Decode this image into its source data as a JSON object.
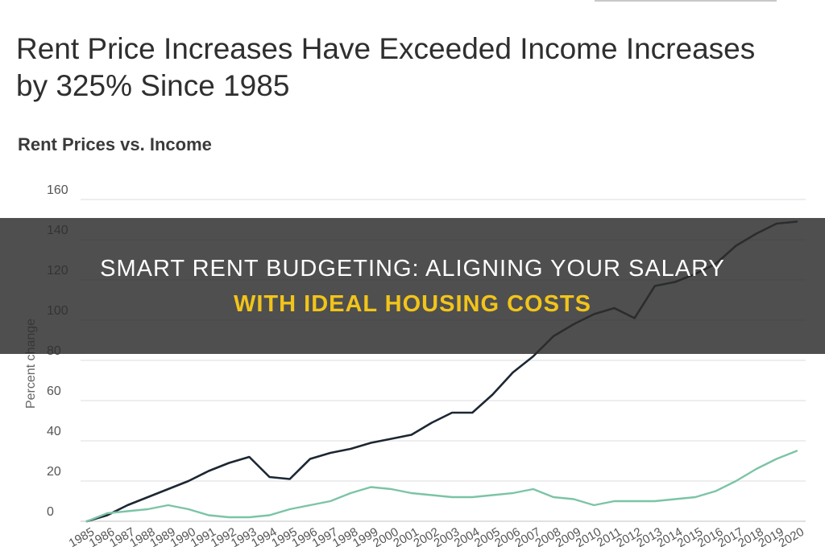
{
  "page": {
    "title": "Rent Price Increases Have Exceeded Income Increases by 325% Since 1985"
  },
  "banner": {
    "line1": "SMART RENT BUDGETING: ALIGNING YOUR SALARY",
    "line2": "WITH IDEAL HOUSING COSTS",
    "text_color": "#ffffff",
    "highlight_color": "#f2c41a"
  },
  "chart_data": {
    "type": "line",
    "title": "Rent Prices vs. Income",
    "xlabel": "",
    "ylabel": "Percent change",
    "ylim": [
      0,
      160
    ],
    "yticks": [
      0,
      20,
      40,
      60,
      80,
      100,
      120,
      140,
      160
    ],
    "grid": true,
    "legend": "none",
    "x": [
      "1985",
      "1986",
      "1987",
      "1988",
      "1989",
      "1990",
      "1991",
      "1992",
      "1993",
      "1994",
      "1995",
      "1996",
      "1997",
      "1998",
      "1999",
      "2000",
      "2001",
      "2002",
      "2003",
      "2004",
      "2005",
      "2006",
      "2007",
      "2008",
      "2009",
      "2010",
      "2011",
      "2012",
      "2013",
      "2014",
      "2015",
      "2016",
      "2017",
      "2018",
      "2019",
      "2020"
    ],
    "series": [
      {
        "color": "#1c2733",
        "values": [
          0,
          3,
          8,
          12,
          16,
          20,
          25,
          29,
          32,
          22,
          21,
          31,
          34,
          36,
          39,
          41,
          43,
          49,
          54,
          54,
          63,
          74,
          82,
          92,
          98,
          103,
          106,
          101,
          117,
          119,
          123,
          128,
          137,
          143,
          148,
          149
        ]
      },
      {
        "color": "#7cc4a6",
        "values": [
          0,
          4,
          5,
          6,
          8,
          6,
          3,
          2,
          2,
          3,
          6,
          8,
          10,
          14,
          17,
          16,
          14,
          13,
          12,
          12,
          13,
          14,
          16,
          12,
          11,
          8,
          10,
          10,
          10,
          11,
          12,
          15,
          20,
          26,
          31,
          35
        ]
      }
    ]
  }
}
